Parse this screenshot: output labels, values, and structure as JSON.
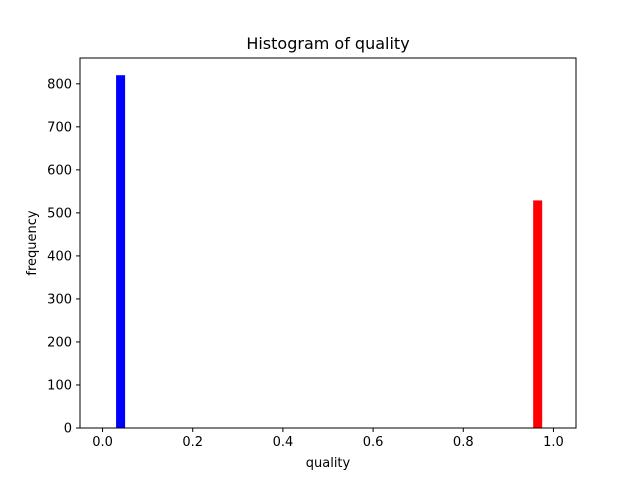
{
  "chart_data": {
    "type": "bar",
    "title": "Histogram of quality",
    "xlabel": "quality",
    "ylabel": "frequency",
    "xlim": [
      -0.05,
      1.05
    ],
    "ylim": [
      0,
      860
    ],
    "xticks": [
      0.0,
      0.2,
      0.4,
      0.6,
      0.8,
      1.0
    ],
    "xtick_labels": [
      "0.0",
      "0.2",
      "0.4",
      "0.6",
      "0.8",
      "1.0"
    ],
    "yticks": [
      0,
      100,
      200,
      300,
      400,
      500,
      600,
      700,
      800
    ],
    "ytick_labels": [
      "0",
      "100",
      "200",
      "300",
      "400",
      "500",
      "600",
      "700",
      "800"
    ],
    "bin_width": 0.02,
    "bars": [
      {
        "x_start": 0.03,
        "value": 820,
        "color": "#0000ff"
      },
      {
        "x_start": 0.955,
        "value": 529,
        "color": "#ff0000"
      }
    ],
    "grid": false
  }
}
